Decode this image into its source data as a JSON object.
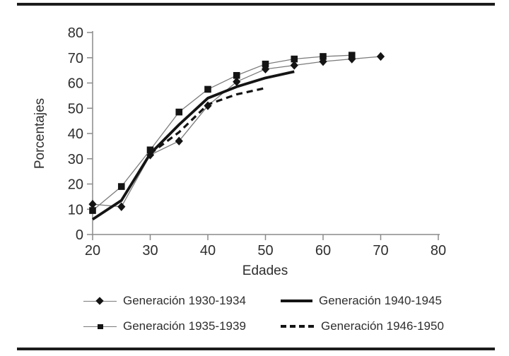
{
  "colors": {
    "ink": "#141414",
    "axis": "#8a8a8a",
    "thin_line": "#7a7a7a",
    "text": "#2e2e2e",
    "background": "#ffffff"
  },
  "chart_data": {
    "type": "line",
    "title": "",
    "xlabel": "Edades",
    "ylabel": "Porcentajes",
    "xlim": [
      20,
      80
    ],
    "ylim": [
      0,
      80
    ],
    "xticks": [
      20,
      30,
      40,
      50,
      60,
      70,
      80
    ],
    "yticks": [
      0,
      10,
      20,
      30,
      40,
      50,
      60,
      70,
      80
    ],
    "grid": false,
    "legend_position": "bottom-two-column",
    "series": [
      {
        "name": "Generación 1930-1934",
        "marker": "diamond",
        "line": "thin",
        "x": [
          20,
          25,
          30,
          35,
          40,
          45,
          50,
          55,
          60,
          65,
          70
        ],
        "y": [
          12,
          11,
          31.5,
          37,
          51,
          60.5,
          65.5,
          67,
          68.5,
          69.5,
          70.5
        ]
      },
      {
        "name": "Generación 1935-1939",
        "marker": "square",
        "line": "thin",
        "x": [
          20,
          25,
          30,
          35,
          40,
          45,
          50,
          55,
          60,
          65
        ],
        "y": [
          9.5,
          19,
          33.5,
          48.5,
          57.5,
          63,
          67.5,
          69.5,
          70.5,
          71
        ]
      },
      {
        "name": "Generación 1940-1945",
        "marker": "none",
        "line": "thick",
        "x": [
          20,
          25,
          30,
          35,
          40,
          45,
          50,
          55
        ],
        "y": [
          6,
          13.5,
          32,
          43.5,
          54,
          58.5,
          62,
          64.5
        ]
      },
      {
        "name": "Generación 1946-1950",
        "marker": "none",
        "line": "dashed",
        "x": [
          30,
          35,
          40,
          45,
          50
        ],
        "y": [
          32,
          40.5,
          51.5,
          55.5,
          58
        ]
      }
    ],
    "legend_order": [
      0,
      2,
      1,
      3
    ]
  }
}
